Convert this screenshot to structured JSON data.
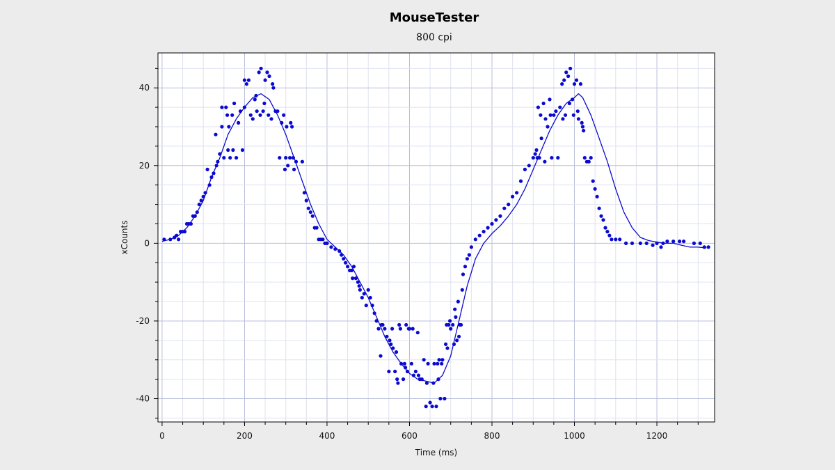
{
  "colors": {
    "background": "#ececec",
    "plot_background": "#ffffff",
    "major_grid": "#b9bedc",
    "minor_grid": "#dfe2f0",
    "series": "#0a0ad0",
    "axis": "#000000"
  },
  "chart_data": {
    "type": "scatter",
    "title": "MouseTester",
    "subtitle": "800 cpi",
    "xlabel": "Time (ms)",
    "ylabel": "xCounts",
    "xlim": [
      -10,
      1340
    ],
    "ylim": [
      -46,
      49
    ],
    "grid": true,
    "xticks": [
      0,
      200,
      400,
      600,
      800,
      1000,
      1200
    ],
    "yticks": [
      -40,
      -20,
      0,
      20,
      40
    ],
    "series": [
      {
        "kind": "points",
        "values": [
          [
            5,
            1
          ],
          [
            20,
            1
          ],
          [
            30,
            1.5
          ],
          [
            35,
            2
          ],
          [
            40,
            1
          ],
          [
            45,
            3
          ],
          [
            50,
            3
          ],
          [
            55,
            3
          ],
          [
            60,
            5
          ],
          [
            65,
            5
          ],
          [
            70,
            5
          ],
          [
            75,
            7
          ],
          [
            80,
            7
          ],
          [
            85,
            8
          ],
          [
            90,
            10
          ],
          [
            95,
            11
          ],
          [
            100,
            12
          ],
          [
            105,
            13
          ],
          [
            110,
            19
          ],
          [
            115,
            15
          ],
          [
            120,
            17
          ],
          [
            125,
            18
          ],
          [
            130,
            28
          ],
          [
            132,
            20
          ],
          [
            135,
            21
          ],
          [
            140,
            23
          ],
          [
            145,
            35
          ],
          [
            145,
            30
          ],
          [
            150,
            22
          ],
          [
            155,
            35
          ],
          [
            158,
            33
          ],
          [
            160,
            24
          ],
          [
            162,
            30
          ],
          [
            165,
            22
          ],
          [
            170,
            33
          ],
          [
            172,
            24
          ],
          [
            175,
            36
          ],
          [
            180,
            22
          ],
          [
            185,
            31
          ],
          [
            190,
            34
          ],
          [
            195,
            24
          ],
          [
            200,
            35
          ],
          [
            200,
            42
          ],
          [
            205,
            41
          ],
          [
            210,
            42
          ],
          [
            215,
            33
          ],
          [
            220,
            32
          ],
          [
            225,
            37
          ],
          [
            228,
            38
          ],
          [
            230,
            34
          ],
          [
            235,
            44
          ],
          [
            238,
            33
          ],
          [
            240,
            45
          ],
          [
            245,
            34
          ],
          [
            248,
            36
          ],
          [
            250,
            42
          ],
          [
            255,
            44
          ],
          [
            258,
            33
          ],
          [
            260,
            43
          ],
          [
            265,
            32
          ],
          [
            268,
            41
          ],
          [
            270,
            40
          ],
          [
            275,
            34
          ],
          [
            280,
            34
          ],
          [
            285,
            22
          ],
          [
            290,
            31
          ],
          [
            295,
            33
          ],
          [
            298,
            19
          ],
          [
            300,
            22
          ],
          [
            302,
            30
          ],
          [
            305,
            20
          ],
          [
            310,
            22
          ],
          [
            312,
            31
          ],
          [
            315,
            30
          ],
          [
            318,
            22
          ],
          [
            320,
            19
          ],
          [
            325,
            21
          ],
          [
            340,
            21
          ],
          [
            345,
            13
          ],
          [
            350,
            11
          ],
          [
            355,
            9
          ],
          [
            360,
            8
          ],
          [
            365,
            7
          ],
          [
            370,
            4
          ],
          [
            375,
            4
          ],
          [
            380,
            1
          ],
          [
            385,
            1
          ],
          [
            390,
            1
          ],
          [
            395,
            0
          ],
          [
            400,
            0
          ],
          [
            410,
            -1
          ],
          [
            420,
            -1.5
          ],
          [
            430,
            -2
          ],
          [
            435,
            -3
          ],
          [
            440,
            -4
          ],
          [
            445,
            -5
          ],
          [
            450,
            -6
          ],
          [
            455,
            -7
          ],
          [
            460,
            -7
          ],
          [
            462,
            -9
          ],
          [
            465,
            -6
          ],
          [
            470,
            -9
          ],
          [
            475,
            -10
          ],
          [
            478,
            -11
          ],
          [
            480,
            -12
          ],
          [
            485,
            -14
          ],
          [
            490,
            -13
          ],
          [
            495,
            -16
          ],
          [
            500,
            -12
          ],
          [
            505,
            -14
          ],
          [
            510,
            -16
          ],
          [
            515,
            -18
          ],
          [
            520,
            -20
          ],
          [
            525,
            -22
          ],
          [
            530,
            -29
          ],
          [
            532,
            -21
          ],
          [
            535,
            -21
          ],
          [
            540,
            -22
          ],
          [
            545,
            -24
          ],
          [
            550,
            -33
          ],
          [
            552,
            -25
          ],
          [
            555,
            -26
          ],
          [
            558,
            -22
          ],
          [
            560,
            -27
          ],
          [
            565,
            -33
          ],
          [
            568,
            -28
          ],
          [
            570,
            -35
          ],
          [
            572,
            -36
          ],
          [
            575,
            -21
          ],
          [
            578,
            -22
          ],
          [
            580,
            -31
          ],
          [
            585,
            -35
          ],
          [
            588,
            -31
          ],
          [
            590,
            -32
          ],
          [
            592,
            -21
          ],
          [
            595,
            -33
          ],
          [
            598,
            -22
          ],
          [
            600,
            -22
          ],
          [
            605,
            -31
          ],
          [
            608,
            -22
          ],
          [
            610,
            -34
          ],
          [
            615,
            -33
          ],
          [
            620,
            -23
          ],
          [
            622,
            -34
          ],
          [
            625,
            -35
          ],
          [
            630,
            -35
          ],
          [
            635,
            -30
          ],
          [
            640,
            -42
          ],
          [
            642,
            -36
          ],
          [
            645,
            -31
          ],
          [
            650,
            -41
          ],
          [
            655,
            -42
          ],
          [
            658,
            -36
          ],
          [
            660,
            -31
          ],
          [
            665,
            -42
          ],
          [
            668,
            -31
          ],
          [
            670,
            -35
          ],
          [
            672,
            -30
          ],
          [
            675,
            -40
          ],
          [
            678,
            -31
          ],
          [
            680,
            -30
          ],
          [
            685,
            -40
          ],
          [
            688,
            -26
          ],
          [
            690,
            -21
          ],
          [
            692,
            -27
          ],
          [
            695,
            -21
          ],
          [
            698,
            -20
          ],
          [
            700,
            -22
          ],
          [
            705,
            -21
          ],
          [
            708,
            -26
          ],
          [
            710,
            -17
          ],
          [
            712,
            -19
          ],
          [
            715,
            -25
          ],
          [
            718,
            -15
          ],
          [
            720,
            -24
          ],
          [
            722,
            -21
          ],
          [
            725,
            -21
          ],
          [
            728,
            -12
          ],
          [
            730,
            -8
          ],
          [
            735,
            -6
          ],
          [
            740,
            -4
          ],
          [
            745,
            -3
          ],
          [
            750,
            -1
          ],
          [
            760,
            1
          ],
          [
            770,
            2
          ],
          [
            780,
            3
          ],
          [
            790,
            4
          ],
          [
            800,
            5
          ],
          [
            810,
            6
          ],
          [
            820,
            7
          ],
          [
            830,
            9
          ],
          [
            840,
            10
          ],
          [
            850,
            12
          ],
          [
            860,
            13
          ],
          [
            870,
            16
          ],
          [
            880,
            19
          ],
          [
            890,
            20
          ],
          [
            900,
            22
          ],
          [
            905,
            23
          ],
          [
            908,
            24
          ],
          [
            910,
            22
          ],
          [
            912,
            35
          ],
          [
            915,
            22
          ],
          [
            918,
            33
          ],
          [
            920,
            27
          ],
          [
            925,
            36
          ],
          [
            928,
            21
          ],
          [
            930,
            32
          ],
          [
            935,
            30
          ],
          [
            940,
            37
          ],
          [
            942,
            33
          ],
          [
            945,
            22
          ],
          [
            950,
            33
          ],
          [
            955,
            34
          ],
          [
            960,
            22
          ],
          [
            965,
            35
          ],
          [
            970,
            41
          ],
          [
            972,
            32
          ],
          [
            975,
            42
          ],
          [
            978,
            33
          ],
          [
            980,
            44
          ],
          [
            985,
            43
          ],
          [
            988,
            36
          ],
          [
            990,
            45
          ],
          [
            995,
            37
          ],
          [
            998,
            33
          ],
          [
            1000,
            41
          ],
          [
            1005,
            42
          ],
          [
            1008,
            34
          ],
          [
            1010,
            32
          ],
          [
            1015,
            41
          ],
          [
            1018,
            31
          ],
          [
            1020,
            30
          ],
          [
            1022,
            29
          ],
          [
            1025,
            22
          ],
          [
            1030,
            21
          ],
          [
            1035,
            21
          ],
          [
            1040,
            22
          ],
          [
            1045,
            16
          ],
          [
            1050,
            14
          ],
          [
            1055,
            12
          ],
          [
            1060,
            9
          ],
          [
            1065,
            7
          ],
          [
            1070,
            6
          ],
          [
            1075,
            4
          ],
          [
            1080,
            3
          ],
          [
            1085,
            2
          ],
          [
            1090,
            1
          ],
          [
            1100,
            1
          ],
          [
            1110,
            1
          ],
          [
            1125,
            0
          ],
          [
            1140,
            0
          ],
          [
            1160,
            0
          ],
          [
            1175,
            0
          ],
          [
            1190,
            -0.5
          ],
          [
            1200,
            0
          ],
          [
            1210,
            -1
          ],
          [
            1215,
            0
          ],
          [
            1225,
            0.5
          ],
          [
            1240,
            0.5
          ],
          [
            1255,
            0.5
          ],
          [
            1265,
            0.5
          ],
          [
            1290,
            0
          ],
          [
            1305,
            0
          ],
          [
            1315,
            -1
          ],
          [
            1325,
            -1
          ]
        ]
      },
      {
        "kind": "line",
        "values": [
          [
            0,
            0.5
          ],
          [
            20,
            1
          ],
          [
            40,
            2
          ],
          [
            60,
            4
          ],
          [
            80,
            7
          ],
          [
            100,
            11
          ],
          [
            120,
            17
          ],
          [
            140,
            22
          ],
          [
            160,
            28
          ],
          [
            180,
            32
          ],
          [
            200,
            35
          ],
          [
            220,
            37.5
          ],
          [
            240,
            38.5
          ],
          [
            260,
            37
          ],
          [
            280,
            33
          ],
          [
            300,
            28
          ],
          [
            320,
            22
          ],
          [
            340,
            16
          ],
          [
            360,
            10
          ],
          [
            380,
            5
          ],
          [
            400,
            1
          ],
          [
            420,
            -1
          ],
          [
            440,
            -3
          ],
          [
            460,
            -6
          ],
          [
            480,
            -10
          ],
          [
            500,
            -14
          ],
          [
            520,
            -19
          ],
          [
            540,
            -24
          ],
          [
            560,
            -28
          ],
          [
            580,
            -31
          ],
          [
            600,
            -33.5
          ],
          [
            620,
            -35
          ],
          [
            640,
            -35.5
          ],
          [
            660,
            -36
          ],
          [
            680,
            -34
          ],
          [
            700,
            -29
          ],
          [
            720,
            -20
          ],
          [
            740,
            -11
          ],
          [
            760,
            -4
          ],
          [
            780,
            0
          ],
          [
            800,
            2.5
          ],
          [
            820,
            4.5
          ],
          [
            840,
            7
          ],
          [
            860,
            10
          ],
          [
            880,
            14
          ],
          [
            900,
            19
          ],
          [
            920,
            24
          ],
          [
            940,
            29
          ],
          [
            960,
            33
          ],
          [
            980,
            36
          ],
          [
            1000,
            37.5
          ],
          [
            1010,
            38.5
          ],
          [
            1020,
            37.5
          ],
          [
            1040,
            33
          ],
          [
            1060,
            27
          ],
          [
            1080,
            21
          ],
          [
            1100,
            14
          ],
          [
            1120,
            8
          ],
          [
            1140,
            4
          ],
          [
            1160,
            1.5
          ],
          [
            1180,
            0.7
          ],
          [
            1200,
            0.3
          ],
          [
            1220,
            0
          ],
          [
            1240,
            0
          ],
          [
            1260,
            -0.5
          ],
          [
            1280,
            -1
          ],
          [
            1300,
            -1
          ],
          [
            1320,
            -1.2
          ]
        ]
      }
    ]
  }
}
